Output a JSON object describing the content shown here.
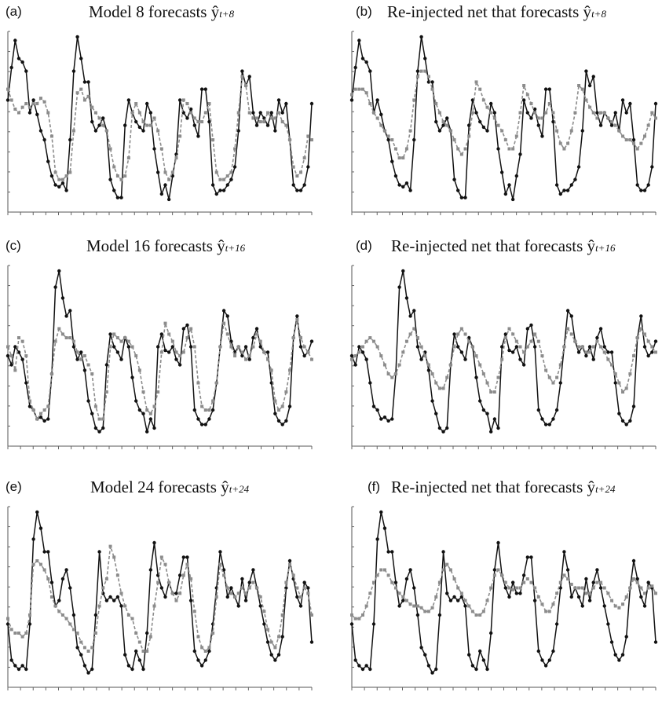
{
  "figure": {
    "panels": [
      {
        "tag": "(a)",
        "title_main": "Model 8 forecasts ŷ",
        "title_sub": "t+8"
      },
      {
        "tag": "(b)",
        "title_main": "Re-injected net that forecasts ŷ",
        "title_sub": "t+8"
      },
      {
        "tag": "(c)",
        "title_main": "Model 16 forecasts ŷ",
        "title_sub": "t+16"
      },
      {
        "tag": "(d)",
        "title_main": "Re-injected net that forecasts ŷ",
        "title_sub": "t+16"
      },
      {
        "tag": "(e)",
        "title_main": "Model 24 forecasts ŷ",
        "title_sub": "t+24"
      },
      {
        "tag": "(f)",
        "title_main": "Re-injected net that forecasts ŷ",
        "title_sub": "t+24"
      }
    ]
  },
  "style": {
    "actual_color": "#111111",
    "forecast_color": "#8c8c8c"
  },
  "chart_data": [
    {
      "type": "line",
      "panel": "a",
      "title": "Model 8 forecasts ŷt+8",
      "xlabel": "",
      "ylabel": "",
      "ylim": [
        0,
        100
      ],
      "grid": false,
      "series": [
        {
          "style": "solid-black-dots",
          "values": [
            62,
            80,
            95,
            85,
            83,
            78,
            55,
            62,
            54,
            45,
            40,
            28,
            20,
            15,
            14,
            16,
            12,
            40,
            78,
            97,
            85,
            72,
            72,
            50,
            45,
            48,
            52,
            45,
            18,
            12,
            8,
            8,
            48,
            62,
            55,
            50,
            47,
            45,
            60,
            55,
            35,
            22,
            10,
            15,
            7,
            20,
            32,
            62,
            55,
            52,
            57,
            48,
            42,
            68,
            68,
            50,
            15,
            10,
            12,
            12,
            15,
            18,
            25,
            45,
            78,
            70,
            75,
            55,
            48,
            55,
            52,
            48,
            55,
            45,
            62,
            55,
            60,
            40,
            15,
            12,
            12,
            15,
            25,
            60
          ]
        },
        {
          "style": "dashed-grey-squares",
          "values": [
            68,
            62,
            57,
            55,
            58,
            60,
            58,
            60,
            60,
            63,
            61,
            55,
            42,
            22,
            18,
            18,
            20,
            22,
            45,
            66,
            68,
            62,
            64,
            58,
            55,
            52,
            48,
            45,
            35,
            25,
            20,
            18,
            20,
            30,
            55,
            60,
            55,
            50,
            48,
            48,
            52,
            45,
            35,
            22,
            18,
            22,
            30,
            42,
            62,
            60,
            55,
            52,
            50,
            50,
            55,
            60,
            40,
            22,
            18,
            18,
            20,
            22,
            35,
            55,
            75,
            70,
            55,
            52,
            52,
            50,
            50,
            55,
            52,
            52,
            55,
            50,
            48,
            40,
            25,
            20,
            22,
            30,
            42,
            40
          ]
        }
      ]
    },
    {
      "type": "line",
      "panel": "b",
      "title": "Re-injected net that forecasts ŷt+8",
      "xlabel": "",
      "ylabel": "",
      "ylim": [
        0,
        100
      ],
      "grid": false,
      "series": [
        {
          "style": "solid-black-dots",
          "values": [
            62,
            80,
            95,
            85,
            83,
            78,
            55,
            62,
            54,
            45,
            40,
            28,
            20,
            15,
            14,
            16,
            12,
            40,
            78,
            97,
            85,
            72,
            72,
            50,
            45,
            48,
            52,
            45,
            18,
            12,
            8,
            8,
            48,
            62,
            55,
            50,
            47,
            45,
            60,
            55,
            35,
            22,
            10,
            15,
            7,
            20,
            32,
            62,
            55,
            52,
            57,
            48,
            42,
            68,
            68,
            50,
            15,
            10,
            12,
            12,
            15,
            18,
            25,
            45,
            78,
            70,
            75,
            55,
            48,
            55,
            52,
            48,
            55,
            45,
            62,
            55,
            60,
            40,
            15,
            12,
            12,
            15,
            25,
            60
          ]
        },
        {
          "style": "dashed-grey-squares",
          "values": [
            65,
            68,
            68,
            68,
            66,
            60,
            55,
            52,
            48,
            45,
            42,
            40,
            35,
            30,
            30,
            35,
            45,
            62,
            75,
            78,
            78,
            75,
            68,
            60,
            55,
            50,
            48,
            45,
            40,
            35,
            32,
            35,
            42,
            55,
            72,
            68,
            62,
            58,
            55,
            52,
            48,
            45,
            40,
            35,
            35,
            42,
            55,
            70,
            65,
            60,
            55,
            52,
            52,
            55,
            60,
            55,
            45,
            38,
            35,
            38,
            45,
            55,
            70,
            68,
            62,
            58,
            55,
            52,
            55,
            55,
            52,
            50,
            48,
            45,
            42,
            40,
            40,
            38,
            35,
            38,
            42,
            48,
            55,
            52
          ]
        }
      ]
    },
    {
      "type": "line",
      "panel": "c",
      "title": "Model 16 forecasts ŷt+16",
      "xlabel": "",
      "ylabel": "",
      "ylim": [
        0,
        100
      ],
      "grid": false,
      "series": [
        {
          "style": "solid-black-dots",
          "values": [
            50,
            45,
            55,
            52,
            48,
            35,
            22,
            20,
            15,
            16,
            14,
            15,
            40,
            88,
            97,
            82,
            72,
            75,
            55,
            48,
            52,
            42,
            25,
            18,
            10,
            8,
            10,
            45,
            62,
            55,
            52,
            48,
            60,
            55,
            38,
            25,
            20,
            18,
            8,
            15,
            10,
            55,
            62,
            53,
            52,
            55,
            48,
            45,
            65,
            67,
            55,
            20,
            15,
            12,
            12,
            15,
            20,
            35,
            55,
            75,
            72,
            58,
            52,
            55,
            50,
            55,
            48,
            60,
            65,
            55,
            52,
            52,
            35,
            18,
            14,
            12,
            14,
            22,
            60,
            72,
            55,
            50,
            52,
            58
          ]
        },
        {
          "style": "dashed-grey-squares",
          "values": [
            55,
            50,
            42,
            60,
            58,
            50,
            25,
            20,
            15,
            18,
            20,
            22,
            40,
            58,
            65,
            62,
            60,
            60,
            58,
            52,
            48,
            50,
            45,
            40,
            22,
            15,
            15,
            30,
            55,
            62,
            60,
            58,
            60,
            58,
            55,
            50,
            42,
            30,
            20,
            18,
            22,
            30,
            52,
            68,
            62,
            58,
            52,
            50,
            52,
            60,
            65,
            55,
            35,
            22,
            20,
            20,
            25,
            35,
            55,
            68,
            62,
            55,
            50,
            55,
            52,
            48,
            50,
            55,
            62,
            58,
            52,
            48,
            42,
            25,
            20,
            22,
            30,
            42,
            60,
            70,
            60,
            55,
            52,
            48
          ]
        }
      ]
    },
    {
      "type": "line",
      "panel": "d",
      "title": "Re-injected net that forecasts ŷt+16",
      "xlabel": "",
      "ylabel": "",
      "ylim": [
        0,
        100
      ],
      "grid": false,
      "series": [
        {
          "style": "solid-black-dots",
          "values": [
            50,
            45,
            55,
            52,
            48,
            35,
            22,
            20,
            15,
            16,
            14,
            15,
            40,
            88,
            97,
            82,
            72,
            75,
            55,
            48,
            52,
            42,
            25,
            18,
            10,
            8,
            10,
            45,
            62,
            55,
            52,
            48,
            60,
            55,
            38,
            25,
            20,
            18,
            8,
            15,
            10,
            55,
            62,
            53,
            52,
            55,
            48,
            45,
            65,
            67,
            55,
            20,
            15,
            12,
            12,
            15,
            20,
            35,
            55,
            75,
            72,
            58,
            52,
            55,
            50,
            55,
            48,
            60,
            65,
            55,
            52,
            52,
            35,
            18,
            14,
            12,
            14,
            22,
            60,
            72,
            55,
            50,
            52,
            58
          ]
        },
        {
          "style": "dashed-grey-squares",
          "values": [
            48,
            50,
            52,
            55,
            58,
            60,
            58,
            55,
            50,
            45,
            40,
            38,
            40,
            45,
            52,
            58,
            62,
            65,
            60,
            55,
            50,
            45,
            40,
            35,
            32,
            32,
            38,
            45,
            55,
            62,
            65,
            62,
            58,
            55,
            50,
            45,
            40,
            35,
            30,
            30,
            38,
            48,
            60,
            65,
            62,
            58,
            55,
            52,
            55,
            58,
            62,
            58,
            50,
            42,
            38,
            35,
            38,
            45,
            55,
            65,
            62,
            58,
            55,
            55,
            52,
            52,
            55,
            58,
            55,
            52,
            48,
            45,
            40,
            35,
            30,
            32,
            40,
            50,
            60,
            65,
            62,
            58,
            55,
            52
          ]
        }
      ]
    },
    {
      "type": "line",
      "panel": "e",
      "title": "Model 24 forecasts ŷt+24",
      "xlabel": "",
      "ylabel": "",
      "ylim": [
        0,
        100
      ],
      "grid": false,
      "series": [
        {
          "style": "solid-black-dots",
          "values": [
            35,
            15,
            12,
            10,
            12,
            10,
            35,
            82,
            97,
            88,
            75,
            75,
            58,
            45,
            48,
            60,
            65,
            55,
            40,
            22,
            18,
            12,
            8,
            10,
            40,
            75,
            52,
            48,
            50,
            48,
            50,
            45,
            18,
            12,
            10,
            20,
            15,
            10,
            30,
            65,
            80,
            62,
            55,
            50,
            58,
            52,
            52,
            62,
            72,
            72,
            48,
            20,
            15,
            12,
            15,
            20,
            35,
            55,
            75,
            65,
            50,
            55,
            50,
            45,
            60,
            48,
            58,
            65,
            55,
            45,
            35,
            25,
            18,
            15,
            18,
            28,
            55,
            70,
            60,
            50,
            45,
            58,
            55,
            25
          ]
        },
        {
          "style": "dashed-grey-squares",
          "values": [
            38,
            32,
            30,
            30,
            28,
            30,
            40,
            68,
            70,
            68,
            65,
            60,
            50,
            45,
            42,
            40,
            38,
            35,
            32,
            30,
            25,
            22,
            20,
            22,
            30,
            45,
            55,
            60,
            78,
            72,
            62,
            52,
            45,
            40,
            38,
            30,
            25,
            20,
            20,
            28,
            45,
            58,
            72,
            68,
            58,
            52,
            48,
            52,
            62,
            68,
            60,
            42,
            28,
            22,
            20,
            22,
            30,
            50,
            68,
            62,
            55,
            52,
            50,
            52,
            55,
            52,
            55,
            58,
            55,
            50,
            42,
            32,
            25,
            22,
            28,
            40,
            58,
            68,
            62,
            55,
            50,
            55,
            52,
            40
          ]
        }
      ]
    },
    {
      "type": "line",
      "panel": "f",
      "title": "Re-injected net that forecasts ŷt+24",
      "xlabel": "",
      "ylabel": "",
      "ylim": [
        0,
        100
      ],
      "grid": false,
      "series": [
        {
          "style": "solid-black-dots",
          "values": [
            35,
            15,
            12,
            10,
            12,
            10,
            35,
            82,
            97,
            88,
            75,
            75,
            58,
            45,
            48,
            60,
            65,
            55,
            40,
            22,
            18,
            12,
            8,
            10,
            40,
            75,
            52,
            48,
            50,
            48,
            50,
            45,
            18,
            12,
            10,
            20,
            15,
            10,
            30,
            65,
            80,
            62,
            55,
            50,
            58,
            52,
            52,
            62,
            72,
            72,
            48,
            20,
            15,
            12,
            15,
            20,
            35,
            55,
            75,
            65,
            50,
            55,
            50,
            45,
            60,
            48,
            58,
            65,
            55,
            45,
            35,
            25,
            18,
            15,
            18,
            28,
            55,
            70,
            60,
            50,
            45,
            58,
            55,
            25
          ]
        },
        {
          "style": "dashed-grey-squares",
          "values": [
            40,
            38,
            38,
            40,
            45,
            52,
            58,
            62,
            65,
            65,
            62,
            58,
            55,
            52,
            50,
            48,
            46,
            45,
            45,
            44,
            42,
            42,
            44,
            50,
            58,
            65,
            68,
            65,
            60,
            55,
            52,
            48,
            45,
            42,
            40,
            40,
            42,
            48,
            55,
            62,
            65,
            62,
            58,
            55,
            54,
            55,
            55,
            58,
            60,
            58,
            55,
            50,
            46,
            42,
            42,
            46,
            52,
            58,
            62,
            60,
            57,
            55,
            55,
            55,
            52,
            52,
            55,
            58,
            58,
            55,
            52,
            48,
            45,
            44,
            46,
            50,
            55,
            60,
            58,
            55,
            52,
            55,
            56,
            52
          ]
        }
      ]
    }
  ]
}
